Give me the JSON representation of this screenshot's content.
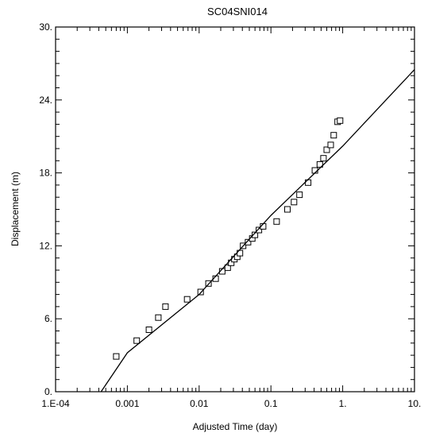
{
  "chart_data": {
    "type": "scatter",
    "title": "SC04SNI014",
    "xlabel": "Adjusted Time (day)",
    "ylabel": "Displacement (m)",
    "x_scale": "log",
    "xlim": [
      0.0001,
      10
    ],
    "ylim": [
      0,
      30
    ],
    "x_ticks": [
      {
        "value": 0.0001,
        "label": "1.E-04"
      },
      {
        "value": 0.001,
        "label": "0.001"
      },
      {
        "value": 0.01,
        "label": "0.01"
      },
      {
        "value": 0.1,
        "label": "0.1"
      },
      {
        "value": 1,
        "label": "1."
      },
      {
        "value": 10,
        "label": "10."
      }
    ],
    "y_ticks": [
      {
        "value": 0,
        "label": "0."
      },
      {
        "value": 6,
        "label": "6."
      },
      {
        "value": 12,
        "label": "12."
      },
      {
        "value": 18,
        "label": "18."
      },
      {
        "value": 24,
        "label": "24."
      },
      {
        "value": 30,
        "label": "30."
      }
    ],
    "grid": false,
    "series": [
      {
        "kind": "points",
        "marker": "open-square",
        "points": [
          {
            "x": 0.0007,
            "y": 2.9
          },
          {
            "x": 0.00135,
            "y": 4.2
          },
          {
            "x": 0.002,
            "y": 5.1
          },
          {
            "x": 0.0027,
            "y": 6.1
          },
          {
            "x": 0.0034,
            "y": 7.0
          },
          {
            "x": 0.0068,
            "y": 7.6
          },
          {
            "x": 0.0105,
            "y": 8.2
          },
          {
            "x": 0.0135,
            "y": 8.9
          },
          {
            "x": 0.017,
            "y": 9.3
          },
          {
            "x": 0.021,
            "y": 9.9
          },
          {
            "x": 0.025,
            "y": 10.2
          },
          {
            "x": 0.028,
            "y": 10.6
          },
          {
            "x": 0.031,
            "y": 10.9
          },
          {
            "x": 0.034,
            "y": 11.1
          },
          {
            "x": 0.037,
            "y": 11.4
          },
          {
            "x": 0.041,
            "y": 12.0
          },
          {
            "x": 0.048,
            "y": 12.3
          },
          {
            "x": 0.055,
            "y": 12.6
          },
          {
            "x": 0.06,
            "y": 12.9
          },
          {
            "x": 0.068,
            "y": 13.3
          },
          {
            "x": 0.078,
            "y": 13.6
          },
          {
            "x": 0.12,
            "y": 14.0
          },
          {
            "x": 0.17,
            "y": 15.0
          },
          {
            "x": 0.21,
            "y": 15.6
          },
          {
            "x": 0.25,
            "y": 16.2
          },
          {
            "x": 0.33,
            "y": 17.2
          },
          {
            "x": 0.41,
            "y": 18.2
          },
          {
            "x": 0.48,
            "y": 18.7
          },
          {
            "x": 0.54,
            "y": 19.2
          },
          {
            "x": 0.6,
            "y": 19.9
          },
          {
            "x": 0.68,
            "y": 20.3
          },
          {
            "x": 0.75,
            "y": 21.1
          },
          {
            "x": 0.85,
            "y": 22.2
          },
          {
            "x": 0.92,
            "y": 22.3
          }
        ]
      },
      {
        "kind": "line",
        "points": [
          {
            "x": 0.00043,
            "y": 0.0
          },
          {
            "x": 0.001,
            "y": 3.2
          },
          {
            "x": 0.01,
            "y": 8.0
          },
          {
            "x": 0.1,
            "y": 14.5
          },
          {
            "x": 1,
            "y": 20.2
          },
          {
            "x": 10,
            "y": 26.5
          }
        ]
      }
    ]
  }
}
